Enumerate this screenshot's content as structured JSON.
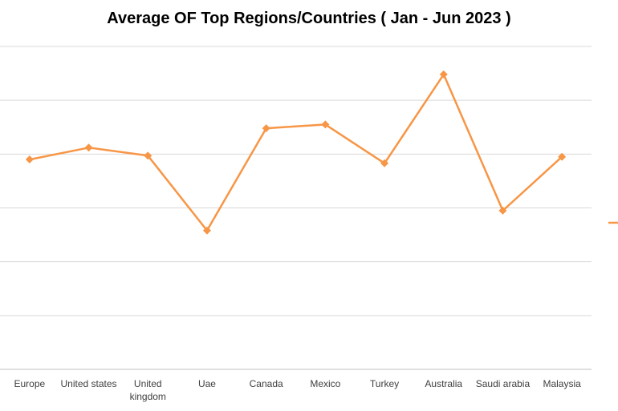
{
  "chart_data": {
    "type": "line",
    "title": "Average OF Top Regions/Countries ( Jan - Jun 2023 )",
    "categories": [
      [
        "Europe"
      ],
      [
        "United states"
      ],
      [
        "United",
        "kingdom"
      ],
      [
        "Uae"
      ],
      [
        "Canada"
      ],
      [
        "Mexico"
      ],
      [
        "Turkey"
      ],
      [
        "Australia"
      ],
      [
        "Saudi arabia"
      ],
      [
        "Malaysia"
      ]
    ],
    "series": [
      {
        "values": [
          3.9,
          4.12,
          3.97,
          2.58,
          4.48,
          4.55,
          3.83,
          5.48,
          2.95,
          3.95
        ]
      }
    ],
    "ylim": [
      0,
      6
    ],
    "grid": true,
    "legend": "right",
    "colors": {
      "line": "#F79646",
      "grid": "#D9D9D9",
      "axis": "#BFBFBF",
      "text": "#404040"
    }
  }
}
